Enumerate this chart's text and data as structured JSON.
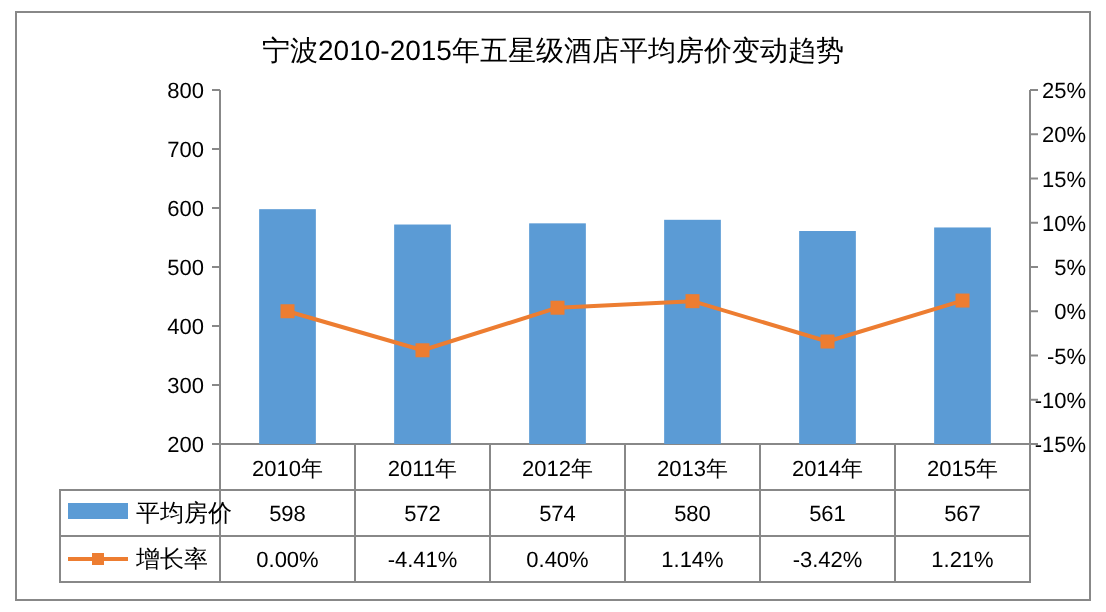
{
  "chart_data": {
    "type": "bar",
    "title": "宁波2010-2015年五星级酒店平均房价变动趋势",
    "categories": [
      "2010年",
      "2011年",
      "2012年",
      "2013年",
      "2014年",
      "2015年"
    ],
    "series": [
      {
        "name": "平均房价",
        "color": "#5b9bd5",
        "values": [
          598,
          572,
          574,
          580,
          561,
          567
        ],
        "value_labels": [
          "598",
          "572",
          "574",
          "580",
          "561",
          "567"
        ]
      },
      {
        "name": "增长率",
        "type": "line",
        "axis": "y2",
        "color": "#ed7d31",
        "marker": "square",
        "values": [
          0.0,
          -4.41,
          0.4,
          1.14,
          -3.42,
          1.21
        ],
        "value_labels": [
          "0.00%",
          "-4.41%",
          "0.40%",
          "1.14%",
          "-3.42%",
          "1.21%"
        ]
      }
    ],
    "ylim": [
      200,
      800
    ],
    "yticks": [
      200,
      300,
      400,
      500,
      600,
      700,
      800
    ],
    "y2lim": [
      -15,
      25
    ],
    "y2ticks": [
      {
        "value": -15,
        "label": "-15%"
      },
      {
        "value": -10,
        "label": "-10%"
      },
      {
        "value": -5,
        "label": "-5%"
      },
      {
        "value": 0,
        "label": "0%"
      },
      {
        "value": 5,
        "label": "5%"
      },
      {
        "value": 10,
        "label": "10%"
      },
      {
        "value": 15,
        "label": "15%"
      },
      {
        "value": 20,
        "label": "20%"
      },
      {
        "value": 25,
        "label": "25%"
      }
    ],
    "grid": false,
    "legend": "bottom left"
  }
}
